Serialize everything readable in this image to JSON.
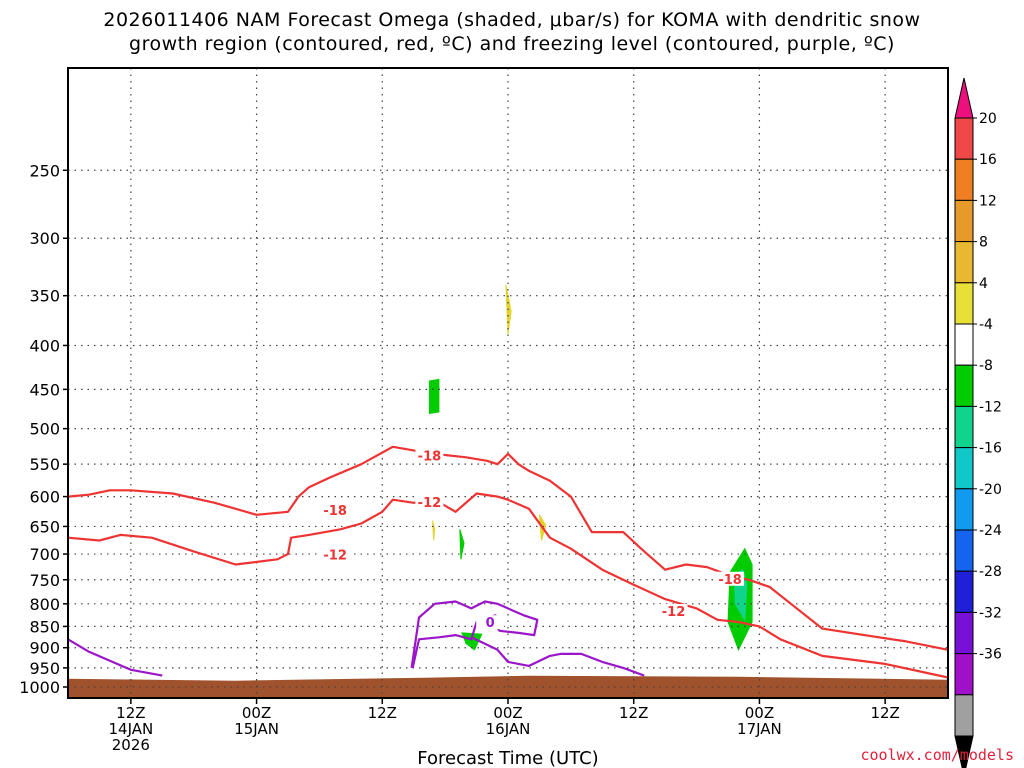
{
  "chart_data": {
    "type": "heatmap",
    "title_line1": "2026011406 NAM Forecast Omega (shaded, μbar/s) for KOMA with dendritic snow",
    "title_line2": "growth region (contoured, red, ºC) and freezing level (contoured, purple, ºC)",
    "xlabel": "Forecast Time (UTC)",
    "credit": "coolwx.com/models",
    "y_axis": {
      "scale": "log-pressure",
      "reversed": true,
      "ylim": [
        1030,
        190
      ],
      "ticks": [
        "250",
        "300",
        "350",
        "400",
        "450",
        "500",
        "550",
        "600",
        "650",
        "700",
        "750",
        "800",
        "850",
        "900",
        "950",
        "1000"
      ]
    },
    "x_axis": {
      "xlim": [
        6,
        90
      ],
      "ticks": [
        {
          "hour": 12,
          "lines": [
            "12Z",
            "14JAN",
            "2026"
          ]
        },
        {
          "hour": 24,
          "lines": [
            "00Z",
            "15JAN"
          ]
        },
        {
          "hour": 36,
          "lines": [
            "12Z"
          ]
        },
        {
          "hour": 48,
          "lines": [
            "00Z",
            "16JAN"
          ]
        },
        {
          "hour": 60,
          "lines": [
            "12Z"
          ]
        },
        {
          "hour": 72,
          "lines": [
            "00Z",
            "17JAN"
          ]
        },
        {
          "hour": 84,
          "lines": [
            "12Z"
          ]
        }
      ]
    },
    "grid": true,
    "colorbar": {
      "placement": "right",
      "labels": [
        "20",
        "16",
        "12",
        "8",
        "4",
        "-4",
        "-8",
        "-12",
        "-16",
        "-20",
        "-24",
        "-28",
        "-32",
        "-36"
      ],
      "colors": [
        "#ee0f7f",
        "#f04848",
        "#f07e22",
        "#e69a2a",
        "#e8b830",
        "#e8df38",
        "#ffffff",
        "#00cc00",
        "#10d48c",
        "#10c8c8",
        "#109af0",
        "#1464f0",
        "#2020d8",
        "#7810d8",
        "#a010c8",
        "#a0a0a0",
        "#000000"
      ]
    },
    "omega_areas": [
      {
        "value": 6,
        "color": "#e2d42c",
        "t": [
          47.8,
          48.3,
          48.0
        ],
        "p": [
          340,
          365,
          388
        ]
      },
      {
        "value": -6,
        "color": "#00cc00",
        "t": [
          40.5,
          41.4,
          41.4,
          40.5
        ],
        "p": [
          440,
          438,
          478,
          480
        ]
      },
      {
        "value": 6,
        "color": "#e2d42c",
        "t": [
          51,
          51.6,
          51.2
        ],
        "p": [
          630,
          648,
          675
        ]
      },
      {
        "value": 6,
        "color": "#e2d42c",
        "t": [
          40.8,
          41.0,
          40.9
        ],
        "p": [
          640,
          655,
          675
        ]
      },
      {
        "value": -6,
        "color": "#00cc00",
        "t": [
          43.4,
          43.8,
          43.5
        ],
        "p": [
          655,
          680,
          710
        ]
      },
      {
        "value": -6,
        "color": "#00cc00",
        "t": [
          43.6,
          45.5,
          44.8,
          44.0
        ],
        "p": [
          865,
          868,
          905,
          890
        ]
      },
      {
        "value": -6,
        "color": "#00cc00",
        "t": [
          69.2,
          70.6,
          71.3,
          71.3,
          70.0,
          69.0
        ],
        "p": [
          735,
          690,
          720,
          840,
          905,
          840
        ]
      },
      {
        "value": -10,
        "color": "#10d48c",
        "t": [
          69.6,
          70.4,
          70.8,
          70.6,
          69.7
        ],
        "p": [
          740,
          730,
          760,
          835,
          800
        ]
      }
    ],
    "contours": [
      {
        "label": "-18",
        "color": "#ee3333",
        "t": [
          6,
          8,
          10,
          12,
          16,
          20,
          24,
          27,
          28,
          29,
          31,
          34,
          37,
          39,
          41,
          44,
          46,
          47,
          48,
          49,
          50,
          52,
          54,
          56,
          59,
          61,
          63,
          65,
          67,
          69,
          71,
          73,
          75,
          78,
          82,
          86,
          90
        ],
        "p": [
          600,
          597,
          590,
          590,
          595,
          610,
          630,
          625,
          600,
          585,
          570,
          550,
          525,
          530,
          535,
          540,
          545,
          550,
          535,
          550,
          560,
          575,
          600,
          660,
          660,
          695,
          730,
          720,
          725,
          740,
          750,
          765,
          800,
          855,
          870,
          885,
          905
        ]
      },
      {
        "label": "-12",
        "color": "#ee3333",
        "t": [
          6,
          9,
          11,
          14,
          18,
          22,
          26,
          27,
          27.3,
          29,
          32,
          34,
          36,
          37,
          39,
          41,
          43,
          45,
          47,
          48,
          50,
          52,
          54,
          57,
          60,
          63,
          66,
          68,
          70,
          72,
          74,
          78,
          84,
          90
        ],
        "p": [
          670,
          675,
          665,
          670,
          695,
          720,
          710,
          700,
          670,
          665,
          655,
          645,
          625,
          605,
          610,
          605,
          625,
          595,
          600,
          605,
          620,
          670,
          690,
          730,
          760,
          790,
          810,
          835,
          840,
          850,
          880,
          920,
          940,
          975
        ]
      },
      {
        "label": "0",
        "color": "#9a16c8",
        "t": [
          6,
          8,
          12,
          15
        ],
        "p": [
          880,
          910,
          955,
          970
        ]
      },
      {
        "label": "0",
        "color": "#9a16c8",
        "t": [
          38.8,
          39.5,
          41,
          43,
          44.5,
          45.8,
          47,
          48.5,
          49.5,
          50.8,
          50.5,
          49,
          47.2,
          46.5,
          46.8,
          45,
          44.5,
          43,
          41.5,
          39.5,
          38.9
        ],
        "p": [
          950,
          830,
          800,
          795,
          810,
          795,
          800,
          815,
          825,
          835,
          870,
          865,
          860,
          840,
          825,
          840,
          880,
          870,
          875,
          880,
          950
        ]
      },
      {
        "label": "0",
        "color": "#9a16c8",
        "t": [
          44.5,
          47,
          48,
          50,
          52,
          53,
          55,
          57,
          59,
          61
        ],
        "p": [
          875,
          905,
          935,
          945,
          920,
          915,
          915,
          935,
          950,
          970
        ]
      }
    ]
  }
}
